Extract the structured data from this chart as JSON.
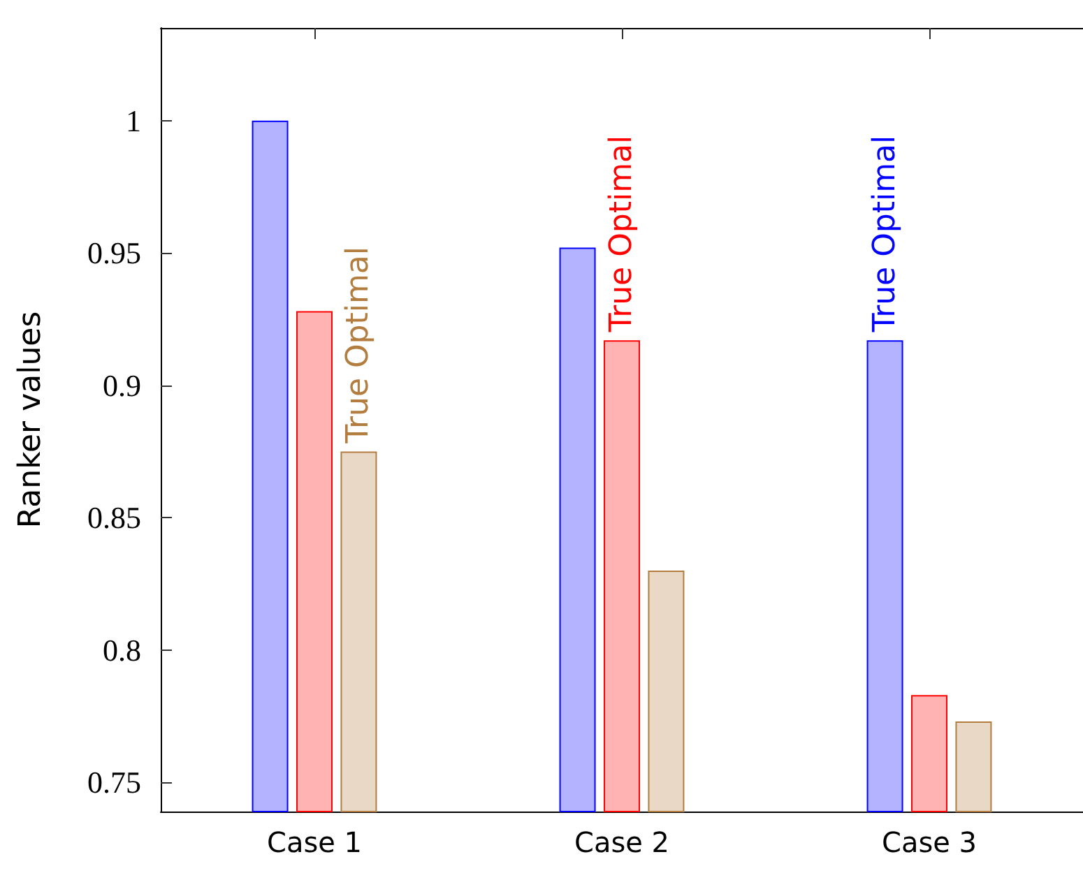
{
  "chart_data": {
    "type": "bar",
    "ylabel": "Ranker values",
    "categories": [
      "Case 1",
      "Case 2",
      "Case 3"
    ],
    "series": [
      {
        "color": "#b3b3ff",
        "values": [
          1.0,
          0.952,
          0.917
        ],
        "value_labels": [
          null,
          null,
          "True Optimal"
        ]
      },
      {
        "color": "#ffb3b3",
        "values": [
          0.928,
          0.917,
          0.783
        ],
        "value_labels": [
          null,
          "True Optimal",
          null
        ]
      },
      {
        "color": "#e8d8c5",
        "values": [
          0.875,
          0.83,
          0.773
        ],
        "value_labels": [
          "True Optimal",
          null,
          null
        ]
      }
    ],
    "ylim": [
      0.739,
      1.035
    ],
    "yticks": [
      0.75,
      0.8,
      0.85,
      0.9,
      0.95,
      1
    ],
    "grid": false
  }
}
